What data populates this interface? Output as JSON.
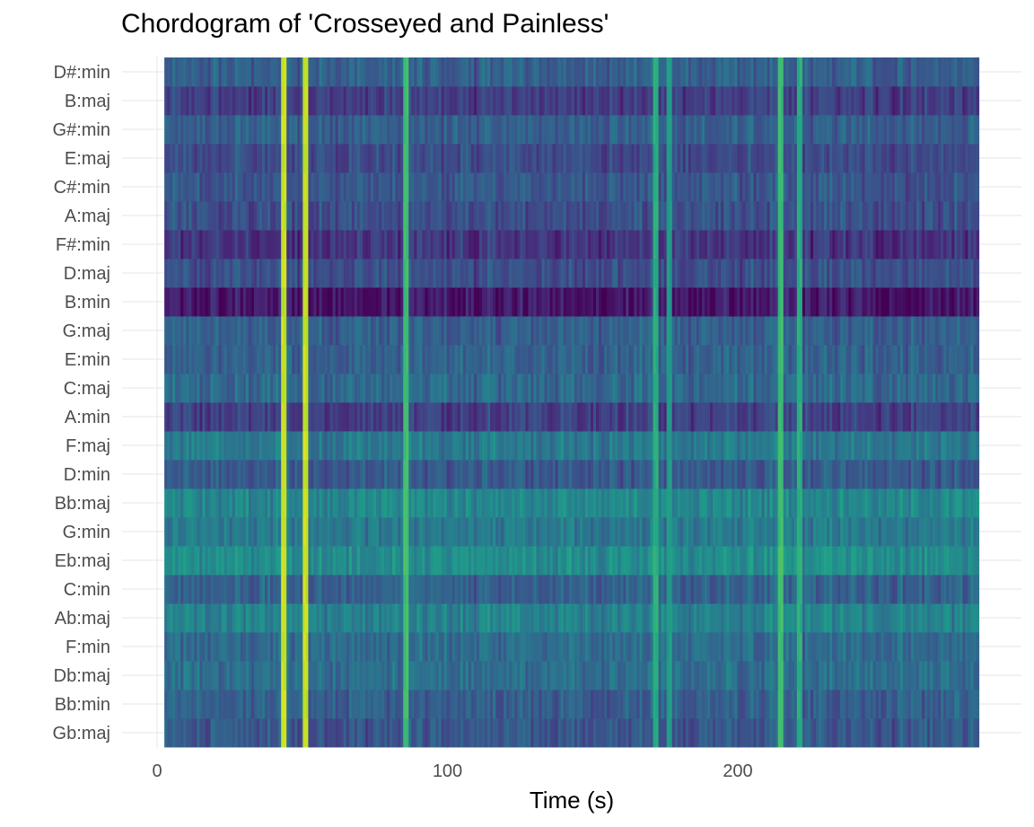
{
  "chart_data": {
    "type": "heatmap",
    "title": "Chordogram of 'Crosseyed and Painless'",
    "xlabel": "Time (s)",
    "ylabel": "",
    "xlim": [
      0,
      287
    ],
    "x_ticks": [
      0,
      100,
      200
    ],
    "x_range": [
      2.5,
      283
    ],
    "chords": [
      "Gb:maj",
      "Bb:min",
      "Db:maj",
      "F:min",
      "Ab:maj",
      "C:min",
      "Eb:maj",
      "G:min",
      "Bb:maj",
      "D:min",
      "F:maj",
      "A:min",
      "C:maj",
      "E:min",
      "G:maj",
      "B:min",
      "D:maj",
      "F#:min",
      "A:maj",
      "C#:min",
      "E:maj",
      "G#:min",
      "B:maj",
      "D#:min"
    ],
    "colormap": "viridis",
    "row_base_level": {
      "Gb:maj": 0.27,
      "Bb:min": 0.3,
      "Db:maj": 0.36,
      "F:min": 0.35,
      "Ab:maj": 0.44,
      "C:min": 0.31,
      "Eb:maj": 0.48,
      "G:min": 0.4,
      "Bb:maj": 0.46,
      "D:min": 0.28,
      "F:maj": 0.4,
      "A:min": 0.19,
      "C:maj": 0.34,
      "E:min": 0.31,
      "G:maj": 0.3,
      "B:min": 0.06,
      "D:maj": 0.24,
      "F#:min": 0.15,
      "A:maj": 0.24,
      "C#:min": 0.27,
      "E:maj": 0.23,
      "G#:min": 0.3,
      "B:maj": 0.18,
      "D#:min": 0.3
    },
    "highlight_times": [
      {
        "t": 43.5,
        "level": 0.95
      },
      {
        "t": 50.5,
        "level": 0.95
      },
      {
        "t": 85,
        "level": 0.72
      },
      {
        "t": 171,
        "level": 0.66
      },
      {
        "t": 176,
        "level": 0.58
      },
      {
        "t": 214,
        "level": 0.72
      },
      {
        "t": 221,
        "level": 0.66
      }
    ],
    "grid": true,
    "legend": "none"
  }
}
